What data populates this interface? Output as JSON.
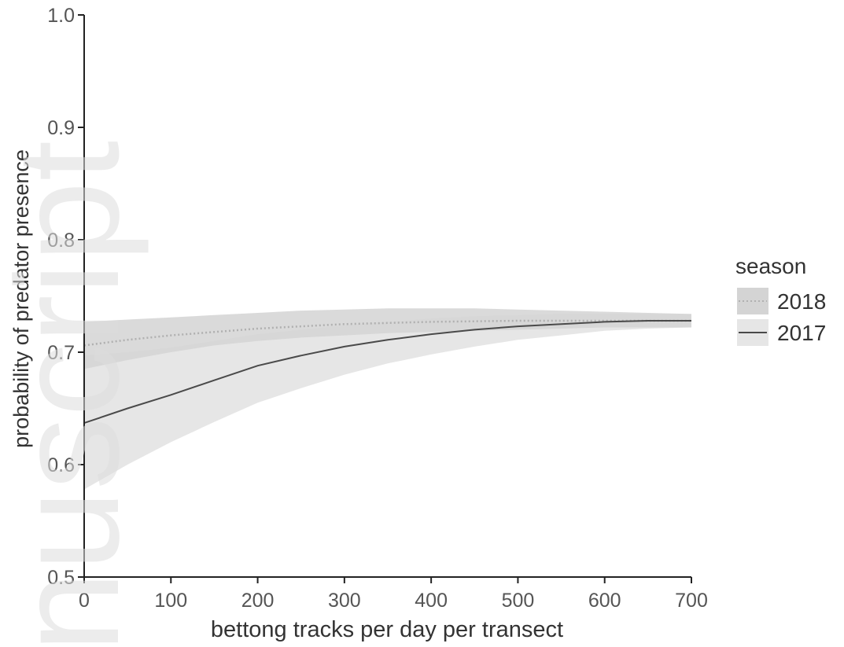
{
  "chart_data": {
    "type": "line",
    "title": "",
    "xlabel": "bettong tracks per day per transect",
    "ylabel": "probability of predator presence",
    "xlim": [
      0,
      700
    ],
    "ylim": [
      0.5,
      1.0
    ],
    "x_ticks": [
      0,
      100,
      200,
      300,
      400,
      500,
      600,
      700
    ],
    "y_ticks": [
      0.5,
      0.6,
      0.7,
      0.8,
      0.9,
      1.0
    ],
    "x_tick_labels": [
      "0",
      "100",
      "200",
      "300",
      "400",
      "500",
      "600",
      "700"
    ],
    "y_tick_labels": [
      "0.5",
      "0.6",
      "0.7",
      "0.8",
      "0.9",
      "1.0"
    ],
    "grid": false,
    "legend": {
      "title": "season",
      "placement": "right"
    },
    "series": [
      {
        "name": "2018",
        "line_style": "dotted",
        "line_color": "#b0b0b0",
        "band_color": "#d4d4d4",
        "x": [
          0,
          50,
          100,
          150,
          200,
          250,
          300,
          350,
          400,
          450,
          500,
          550,
          600,
          650,
          700
        ],
        "y": [
          0.706,
          0.711,
          0.715,
          0.718,
          0.721,
          0.723,
          0.725,
          0.726,
          0.727,
          0.7275,
          0.728,
          0.728,
          0.728,
          0.728,
          0.728
        ],
        "lower": [
          0.685,
          0.693,
          0.7,
          0.706,
          0.71,
          0.713,
          0.715,
          0.717,
          0.718,
          0.719,
          0.72,
          0.721,
          0.722,
          0.722,
          0.722
        ],
        "upper": [
          0.727,
          0.729,
          0.731,
          0.733,
          0.735,
          0.737,
          0.738,
          0.739,
          0.739,
          0.739,
          0.738,
          0.737,
          0.736,
          0.735,
          0.734
        ]
      },
      {
        "name": "2017",
        "line_style": "solid",
        "line_color": "#4a4a4a",
        "band_color": "#e6e6e6",
        "x": [
          0,
          50,
          100,
          150,
          200,
          250,
          300,
          350,
          400,
          450,
          500,
          550,
          600,
          650,
          700
        ],
        "y": [
          0.637,
          0.65,
          0.662,
          0.675,
          0.688,
          0.697,
          0.705,
          0.711,
          0.716,
          0.72,
          0.723,
          0.725,
          0.727,
          0.728,
          0.728
        ],
        "lower": [
          0.578,
          0.6,
          0.62,
          0.638,
          0.655,
          0.668,
          0.68,
          0.69,
          0.698,
          0.705,
          0.711,
          0.715,
          0.719,
          0.721,
          0.722
        ],
        "upper": [
          0.697,
          0.7,
          0.704,
          0.71,
          0.716,
          0.72,
          0.724,
          0.727,
          0.73,
          0.732,
          0.733,
          0.734,
          0.734,
          0.734,
          0.734
        ]
      }
    ],
    "overlay_text": "nuscript"
  }
}
